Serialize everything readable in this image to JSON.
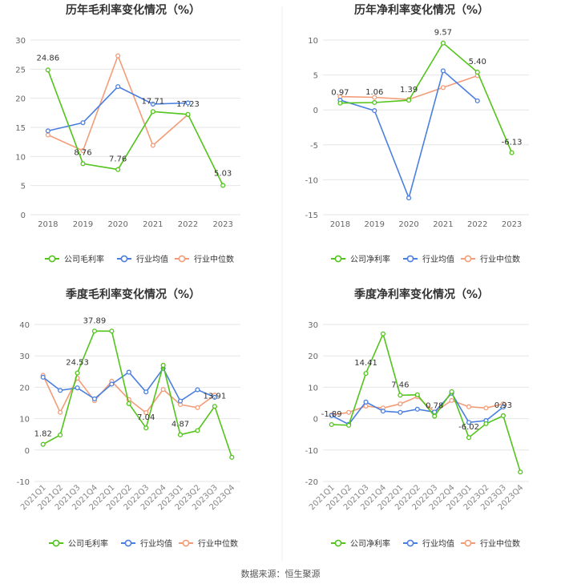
{
  "colors": {
    "company": "#52c41a",
    "average": "#4a7fe0",
    "median": "#f39c78"
  },
  "legend": [
    "公司毛利率",
    "行业均值",
    "行业中位数"
  ],
  "legend_net": [
    "公司净利率",
    "行业均值",
    "行业中位数"
  ],
  "source": "数据来源：恒生聚源",
  "chart_data": [
    {
      "type": "line",
      "title": "历年毛利率变化情况（%）",
      "categories": [
        "2018",
        "2019",
        "2020",
        "2021",
        "2022",
        "2023"
      ],
      "ylim": [
        0,
        30
      ],
      "yticks": [
        0,
        5,
        10,
        15,
        20,
        25,
        30
      ],
      "series": [
        {
          "name": "公司毛利率",
          "color": "company",
          "values": [
            24.86,
            8.76,
            7.76,
            17.71,
            17.23,
            5.03
          ]
        },
        {
          "name": "行业均值",
          "color": "average",
          "values": [
            14.4,
            15.8,
            22.0,
            19.0,
            19.2,
            null
          ]
        },
        {
          "name": "行业中位数",
          "color": "median",
          "values": [
            13.7,
            11.0,
            27.3,
            11.9,
            17.2,
            null
          ]
        }
      ],
      "data_labels": [
        "24.86",
        "8.76",
        "7.76",
        "17.71",
        "17.23",
        "5.03"
      ],
      "legend": "bottom"
    },
    {
      "type": "line",
      "title": "历年净利率变化情况（%）",
      "categories": [
        "2018",
        "2019",
        "2020",
        "2021",
        "2022",
        "2023"
      ],
      "ylim": [
        -15,
        10
      ],
      "yticks": [
        -15,
        -10,
        -5,
        0,
        5,
        10
      ],
      "series": [
        {
          "name": "公司净利率",
          "color": "company",
          "values": [
            0.97,
            1.06,
            1.39,
            9.57,
            5.4,
            -6.13
          ]
        },
        {
          "name": "行业均值",
          "color": "average",
          "values": [
            1.4,
            -0.1,
            -12.6,
            5.6,
            1.3,
            null
          ]
        },
        {
          "name": "行业中位数",
          "color": "median",
          "values": [
            1.9,
            1.8,
            1.5,
            3.2,
            4.9,
            null
          ]
        }
      ],
      "data_labels": [
        "0.97",
        "1.06",
        "1.39",
        "9.57",
        "5.40",
        "-6.13"
      ],
      "legend": "bottom"
    },
    {
      "type": "line",
      "title": "季度毛利率变化情况（%）",
      "categories": [
        "2021Q1",
        "2021Q2",
        "2021Q3",
        "2021Q4",
        "2022Q1",
        "2022Q2",
        "2022Q3",
        "2022Q4",
        "2023Q1",
        "2023Q2",
        "2023Q3",
        "2023Q4"
      ],
      "ylim": [
        -10,
        40
      ],
      "yticks": [
        -10,
        0,
        10,
        20,
        30,
        40
      ],
      "series": [
        {
          "name": "公司毛利率",
          "color": "company",
          "values": [
            1.82,
            4.8,
            24.53,
            37.89,
            37.89,
            14.8,
            7.04,
            27.0,
            4.87,
            6.2,
            13.91,
            -2.3
          ]
        },
        {
          "name": "行业均值",
          "color": "average",
          "values": [
            23.2,
            19.0,
            19.8,
            16.3,
            21.0,
            24.8,
            18.5,
            26.0,
            15.6,
            19.2,
            16.8,
            null
          ]
        },
        {
          "name": "行业中位数",
          "color": "median",
          "values": [
            23.8,
            12.0,
            22.9,
            15.7,
            21.9,
            16.1,
            11.9,
            19.3,
            14.5,
            13.5,
            17.5,
            null
          ]
        }
      ],
      "data_labels": [
        "1.82",
        "24.53",
        "37.89",
        "7.04",
        "4.87",
        "13.91"
      ],
      "legend": "bottom"
    },
    {
      "type": "line",
      "title": "季度净利率变化情况（%）",
      "categories": [
        "2021Q1",
        "2021Q2",
        "2021Q3",
        "2021Q4",
        "2022Q1",
        "2022Q2",
        "2022Q3",
        "2022Q4",
        "2023Q1",
        "2023Q2",
        "2023Q3",
        "2023Q4"
      ],
      "ylim": [
        -20,
        30
      ],
      "yticks": [
        -20,
        -10,
        0,
        10,
        20,
        30
      ],
      "series": [
        {
          "name": "公司净利率",
          "color": "company",
          "values": [
            -1.89,
            -2.1,
            14.41,
            27.0,
            7.46,
            7.6,
            0.78,
            8.6,
            -6.02,
            -1.6,
            0.93,
            -17.0
          ]
        },
        {
          "name": "行业均值",
          "color": "average",
          "values": [
            1.0,
            -1.8,
            5.3,
            2.4,
            2.0,
            3.0,
            2.1,
            8.1,
            -1.2,
            -0.6,
            3.7,
            null
          ]
        },
        {
          "name": "行业中位数",
          "color": "median",
          "values": [
            1.2,
            2.0,
            4.0,
            3.4,
            4.7,
            7.0,
            2.1,
            5.8,
            3.8,
            3.4,
            4.7,
            null
          ]
        }
      ],
      "data_labels": [
        "-1.89",
        "14.41",
        "7.46",
        "0.78",
        "-6.02",
        "0.93"
      ],
      "legend": "bottom"
    }
  ]
}
